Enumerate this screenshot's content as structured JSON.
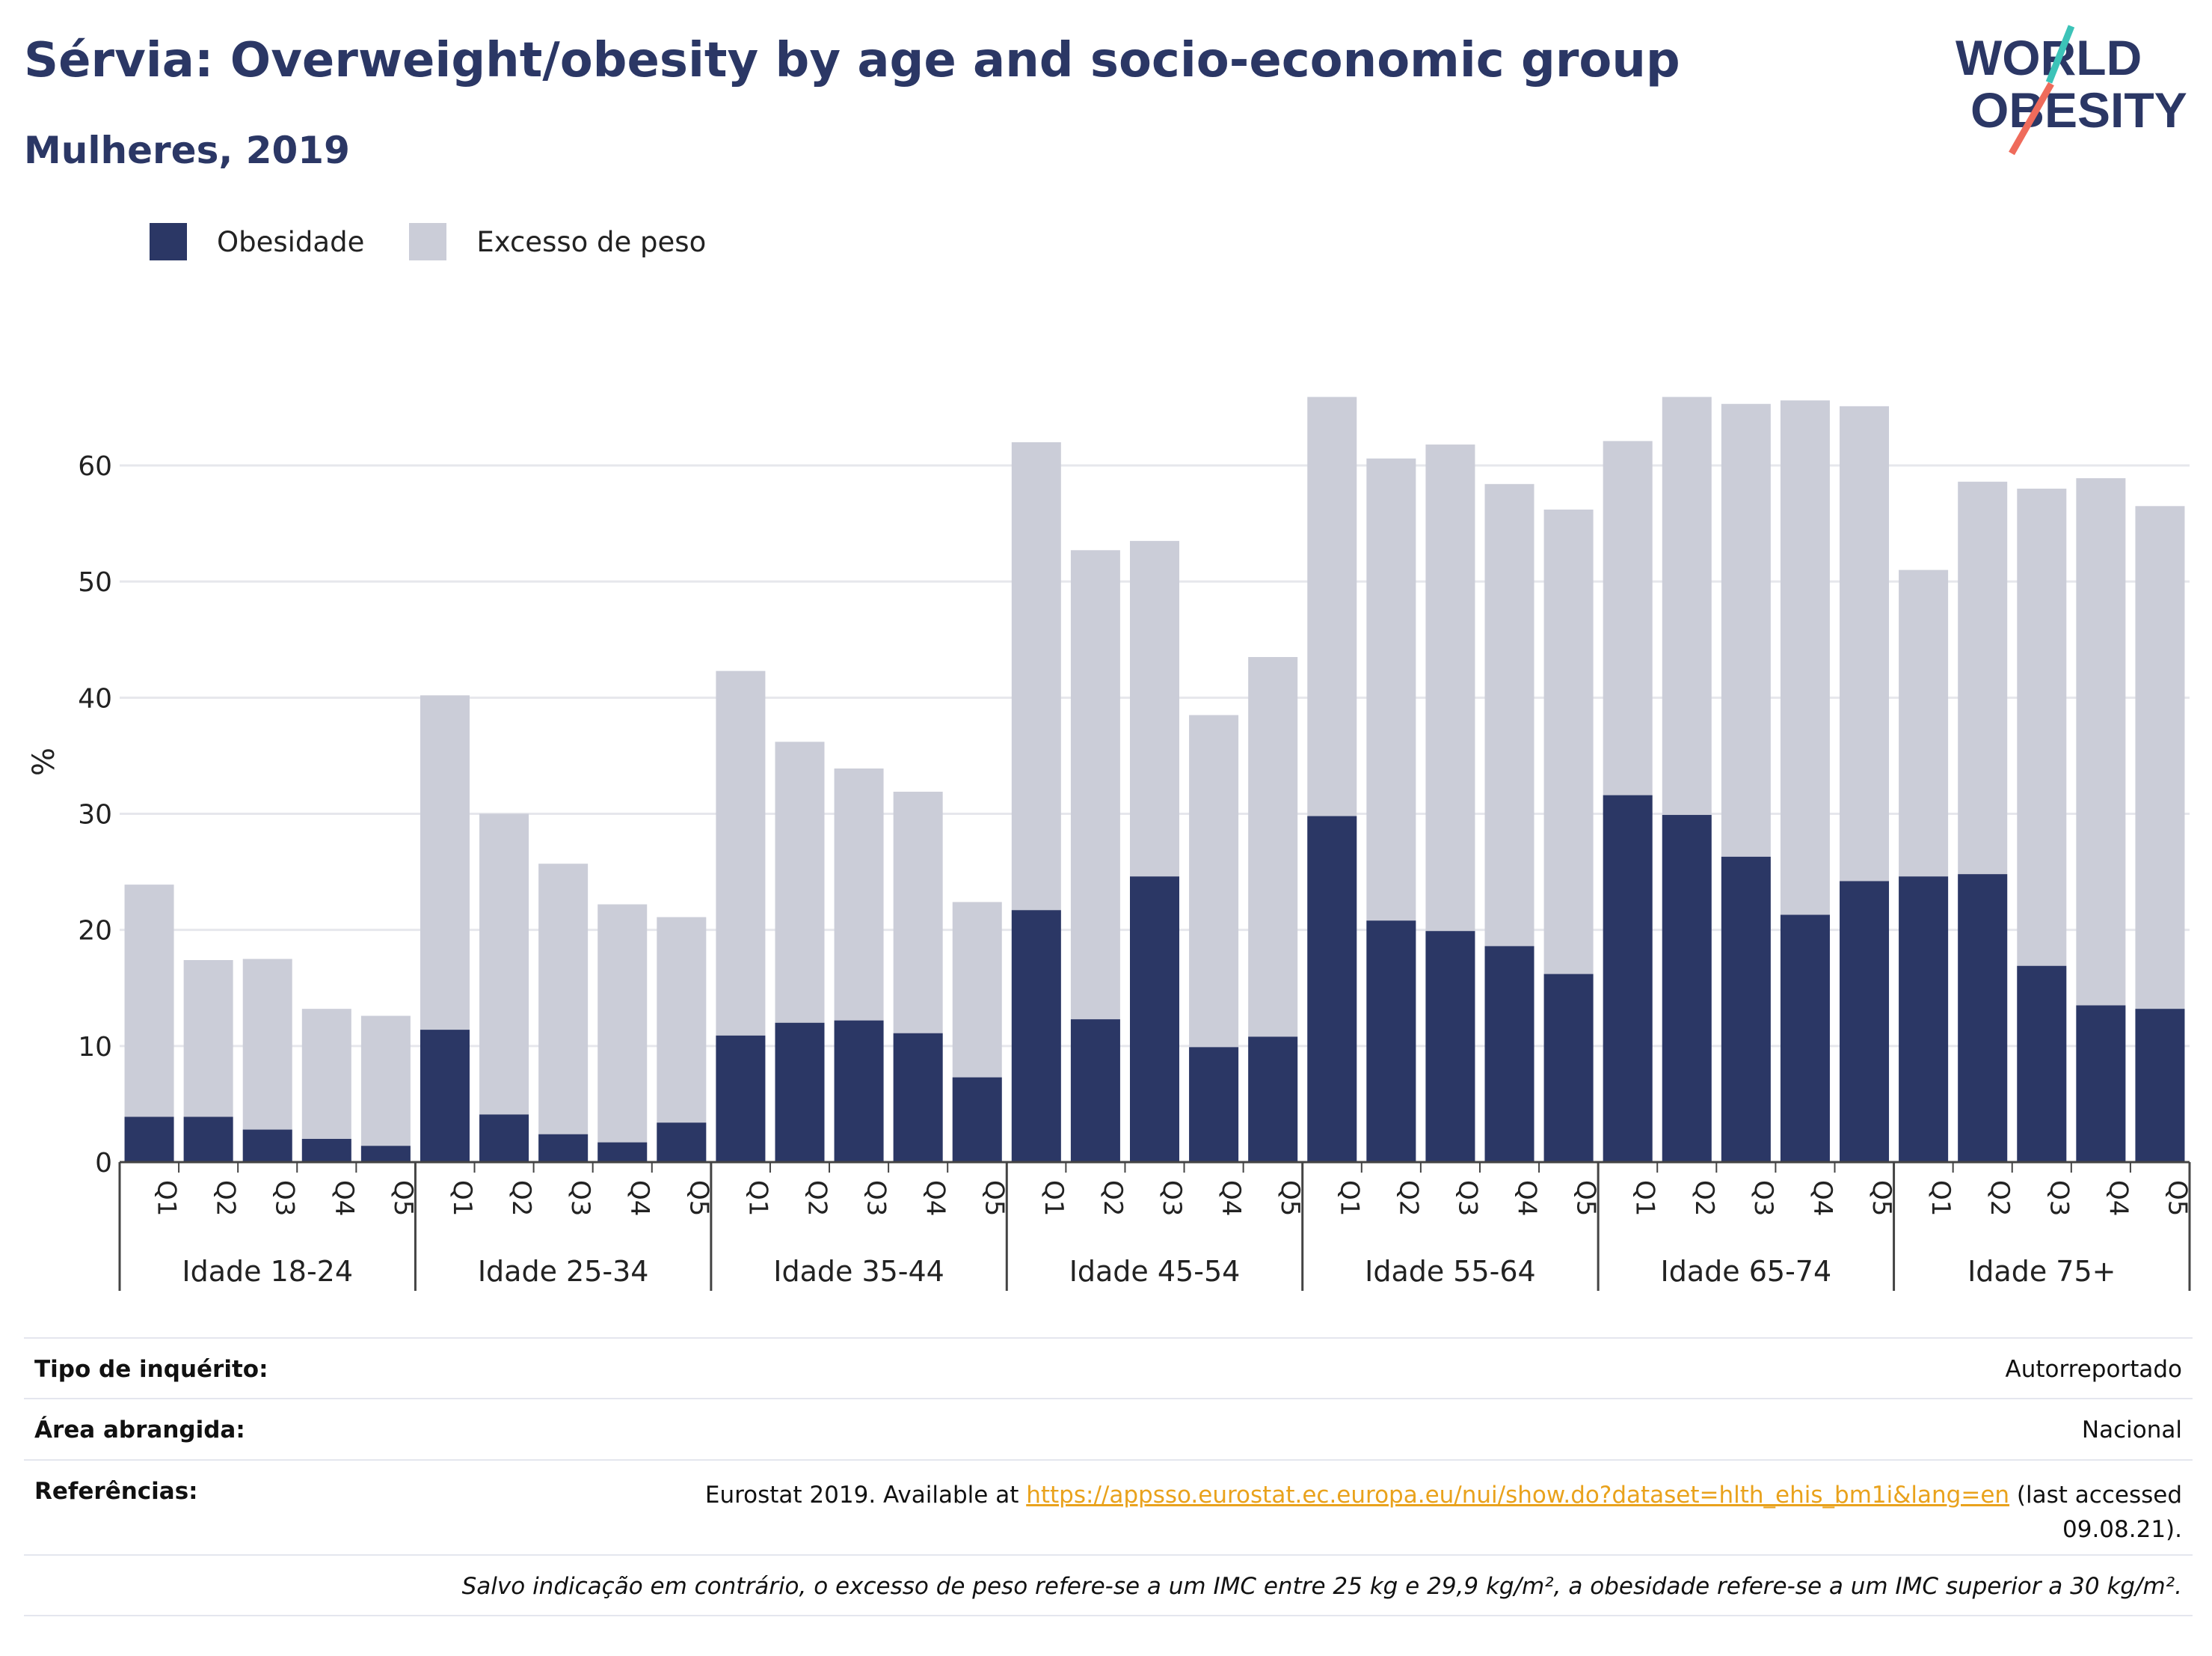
{
  "title": "Sérvia: Overweight/obesity by age and socio-economic group",
  "subtitle": "Mulheres, 2019",
  "logo": {
    "line1": "WORLD",
    "line2": "OBESITY"
  },
  "legend": {
    "obesity": "Obesidade",
    "overweight": "Excesso de peso"
  },
  "colors": {
    "obesity": "#2b3765",
    "overweight": "#cbcdd8",
    "title": "#2b3765",
    "link": "#e9a21c",
    "logo_teal": "#3cc3b8",
    "logo_coral": "#ef6b5b"
  },
  "chart_data": {
    "type": "bar",
    "stacked": false,
    "overlapping": true,
    "ylabel": "%",
    "ylim": [
      0,
      70
    ],
    "yticks": [
      0,
      10,
      20,
      30,
      40,
      50,
      60
    ],
    "grid": true,
    "legend_position": "top-left",
    "groups": [
      "Idade 18-24",
      "Idade 25-34",
      "Idade 35-44",
      "Idade 45-54",
      "Idade 55-64",
      "Idade 65-74",
      "Idade 75+"
    ],
    "categories": [
      "Q1",
      "Q2",
      "Q3",
      "Q4",
      "Q5"
    ],
    "series": [
      {
        "name": "Obesidade",
        "values": [
          [
            3.9,
            3.9,
            2.8,
            2.0,
            1.4
          ],
          [
            11.4,
            4.1,
            2.4,
            1.7,
            3.4
          ],
          [
            10.9,
            12.0,
            12.2,
            11.1,
            7.3
          ],
          [
            21.7,
            12.3,
            24.6,
            9.9,
            10.8
          ],
          [
            29.8,
            20.8,
            19.9,
            18.6,
            16.2
          ],
          [
            31.6,
            29.9,
            26.3,
            21.3,
            24.2
          ],
          [
            24.6,
            24.8,
            16.9,
            13.5,
            13.2
          ]
        ]
      },
      {
        "name": "Excesso de peso",
        "values": [
          [
            23.9,
            17.4,
            17.5,
            13.2,
            12.6
          ],
          [
            40.2,
            30.0,
            25.7,
            22.2,
            21.1
          ],
          [
            42.3,
            36.2,
            33.9,
            31.9,
            22.4
          ],
          [
            62.0,
            52.7,
            53.5,
            38.5,
            43.5
          ],
          [
            65.9,
            60.6,
            61.8,
            58.4,
            56.2
          ],
          [
            62.1,
            65.9,
            65.3,
            65.6,
            65.1
          ],
          [
            51.0,
            58.6,
            58.0,
            58.9,
            56.5
          ]
        ]
      }
    ]
  },
  "meta": {
    "survey_label": "Tipo de inquérito:",
    "survey_value": "Autorreportado",
    "area_label": "Área abrangida:",
    "area_value": "Nacional",
    "ref_label": "Referências:",
    "ref_text_before": "Eurostat 2019. Available at",
    "ref_link": "https://appsso.eurostat.ec.europa.eu/nui/show.do?dataset=hlth_ehis_bm1i&lang=en",
    "ref_text_after": "(last accessed",
    "ref_date": "09.08.21).",
    "note": "Salvo indicação em contrário, o excesso de peso refere-se a um IMC entre 25 kg e 29,9 kg/m², a obesidade refere-se a um IMC superior a 30 kg/m²."
  }
}
